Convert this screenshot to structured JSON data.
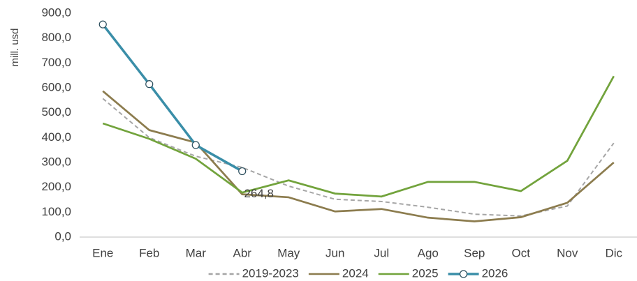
{
  "chart_data": {
    "type": "line",
    "y_label": "mill. usd",
    "categories": [
      "Ene",
      "Feb",
      "Mar",
      "Abr",
      "May",
      "Jun",
      "Jul",
      "Ago",
      "Sep",
      "Oct",
      "Nov",
      "Dic"
    ],
    "series": [
      {
        "name": "2019-2023",
        "color": "#a6a6a6",
        "style": "dashed",
        "values": [
          557,
          400,
          325,
          280,
          205,
          152,
          143,
          120,
          92,
          85,
          125,
          378
        ]
      },
      {
        "name": "2024",
        "color": "#8c7c4e",
        "style": "solid",
        "values": [
          587,
          430,
          380,
          172,
          160,
          103,
          113,
          78,
          63,
          80,
          138,
          300
        ]
      },
      {
        "name": "2025",
        "color": "#72a33c",
        "style": "solid",
        "values": [
          457,
          395,
          315,
          179,
          228,
          175,
          163,
          222,
          222,
          185,
          307,
          647
        ]
      },
      {
        "name": "2026",
        "color": "#3a8ea8",
        "style": "solid",
        "marker": "circle",
        "values": [
          855,
          615,
          370,
          264.8,
          null,
          null,
          null,
          null,
          null,
          null,
          null,
          null
        ],
        "value_labels": [
          null,
          null,
          null,
          "264,8",
          null,
          null,
          null,
          null,
          null,
          null,
          null,
          null
        ]
      }
    ],
    "ylim": [
      0,
      900
    ],
    "yticks": [
      {
        "value": 0,
        "label": "0,0"
      },
      {
        "value": 100,
        "label": "100,0"
      },
      {
        "value": 200,
        "label": "200,0"
      },
      {
        "value": 300,
        "label": "300,0"
      },
      {
        "value": 400,
        "label": "400,0"
      },
      {
        "value": 500,
        "label": "500,0"
      },
      {
        "value": 600,
        "label": "600,0"
      },
      {
        "value": 700,
        "label": "700,0"
      },
      {
        "value": 800,
        "label": "800,0"
      },
      {
        "value": 900,
        "label": "900,0"
      }
    ],
    "grid": false,
    "legend": "bottom"
  }
}
